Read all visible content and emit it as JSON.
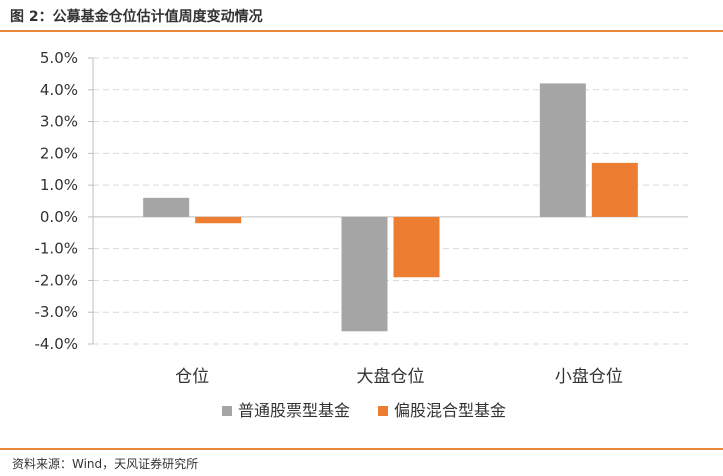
{
  "figure": {
    "title": "图 2：公募基金仓位估计值周度变动情况",
    "source": "资料来源：Wind，天风证券研究所"
  },
  "colors": {
    "accent_rule": "#e8863a"
  },
  "chart_data": {
    "type": "bar",
    "categories": [
      "仓位",
      "大盘仓位",
      "小盘仓位"
    ],
    "series": [
      {
        "name": "普通股票型基金",
        "color": "#a5a5a5",
        "values": [
          0.6,
          -3.6,
          4.2
        ]
      },
      {
        "name": "偏股混合型基金",
        "color": "#ed7d31",
        "values": [
          -0.2,
          -1.9,
          1.7
        ]
      }
    ],
    "ylim": [
      -4.0,
      5.0
    ],
    "yticks": [
      "5.0%",
      "4.0%",
      "3.0%",
      "2.0%",
      "1.0%",
      "0.0%",
      "-1.0%",
      "-2.0%",
      "-3.0%",
      "-4.0%"
    ],
    "ytick_values": [
      5,
      4,
      3,
      2,
      1,
      0,
      -1,
      -2,
      -3,
      -4
    ],
    "grid": true,
    "legend_position": "bottom"
  }
}
